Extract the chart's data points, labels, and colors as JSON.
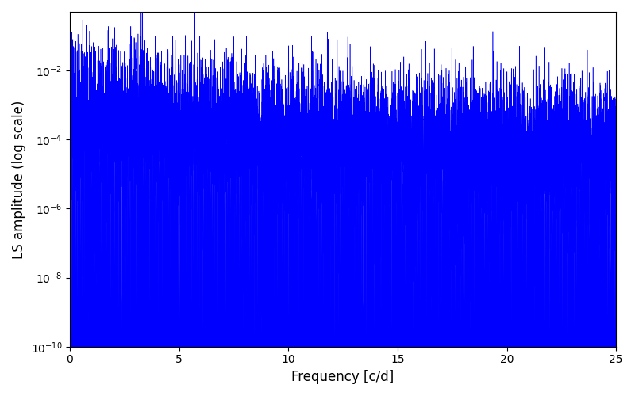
{
  "title": "",
  "xlabel": "Frequency [c/d]",
  "ylabel": "LS amplitude (log scale)",
  "line_color": "blue",
  "background_color": "#ffffff",
  "xlim": [
    0,
    25
  ],
  "ylim": [
    1e-10,
    0.5
  ],
  "figsize": [
    8.0,
    5.0
  ],
  "dpi": 100,
  "freq_max": 25.0,
  "n_points": 10000,
  "seed": 1234
}
